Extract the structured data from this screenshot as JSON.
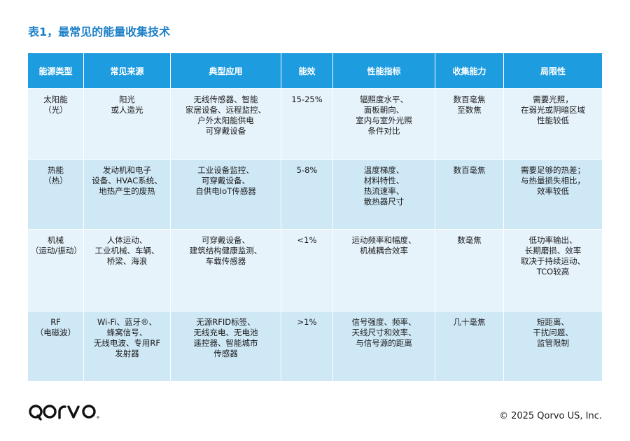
{
  "title": "表1，最常见的能量收集技术",
  "table": {
    "headers": [
      "能源类型",
      "常见来源",
      "典型应用",
      "能效",
      "性能指标",
      "收集能力",
      "局限性"
    ],
    "rows": [
      [
        "太阳能\n（光）",
        "阳光\n或人造光",
        "无线传感器、智能\n家居设备、远程监控、\n户外太阳能供电\n可穿戴设备",
        "15-25%",
        "辐照度水平、\n面板朝向、\n室内与室外光照\n条件对比",
        "数百毫焦\n至数焦",
        "需要光照，\n在弱光或阴暗区域\n性能较低"
      ],
      [
        "热能\n（热）",
        "发动机和电子\n设备、HVAC系统、\n地热产生的废热",
        "工业设备监控、\n可穿戴设备、\n自供电IoT传感器",
        "5-8%",
        "温度梯度、\n材料特性、\n热流速率、\n散热器尺寸",
        "数百毫焦",
        "需要足够的热差；\n与热量损失相比，\n效率较低"
      ],
      [
        "机械\n（运动/振动）",
        "人体运动、\n工业机械、车辆、\n桥梁、海浪",
        "可穿戴设备、\n建筑结构健康监测、\n车载传感器",
        "<1%",
        "运动频率和幅度、\n机械耦合效率",
        "数毫焦",
        "低功率输出、\n长期磨损、效率\n取决于持续运动、\nTCO较高"
      ],
      [
        "RF\n（电磁波）",
        "Wi-Fi、蓝牙®、\n蜂窝信号、\n无线电波、专用RF\n发射器",
        "无源RFID标签、\n无线充电、无电池\n遥控器、智能城市\n传感器",
        ">1%",
        "信号强度、频率、\n天线尺寸和效率、\n与信号源的距离",
        "几十毫焦",
        "短距离、\n干扰问题、\n监管限制"
      ]
    ]
  },
  "footer": {
    "logo_text": "qorvo",
    "copyright": "© 2025 Qorvo US, Inc."
  },
  "colors": {
    "title": "#1c7fc7",
    "header_bg": "#1d9ce0",
    "row_light": "#e6f3fb",
    "row_mid": "#cfe8f6"
  }
}
